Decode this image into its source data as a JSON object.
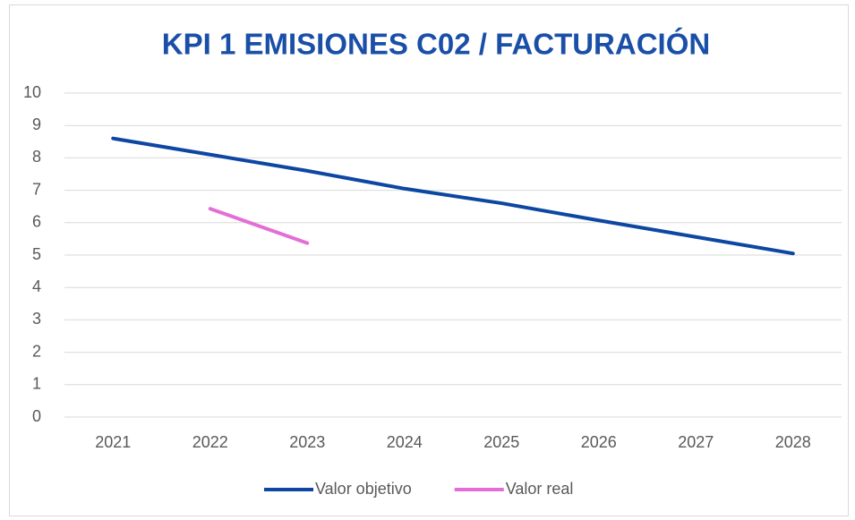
{
  "chart_data": {
    "type": "line",
    "title": "KPI 1 EMISIONES C02 / FACTURACIÓN",
    "categories": [
      "2021",
      "2022",
      "2023",
      "2024",
      "2025",
      "2026",
      "2027",
      "2028"
    ],
    "series": [
      {
        "name": "Valor objetivo",
        "color": "#0d47a1",
        "values": [
          8.6,
          8.1,
          7.6,
          7.05,
          6.6,
          6.07,
          5.56,
          5.05
        ]
      },
      {
        "name": "Valor real",
        "color": "#e36fd6",
        "values": [
          null,
          6.43,
          5.37,
          null,
          null,
          null,
          null,
          null
        ]
      }
    ],
    "ylim": [
      0,
      10
    ],
    "yticks": [
      0,
      1,
      2,
      3,
      4,
      5,
      6,
      7,
      8,
      9,
      10
    ],
    "grid": true,
    "legend": "bottom"
  }
}
